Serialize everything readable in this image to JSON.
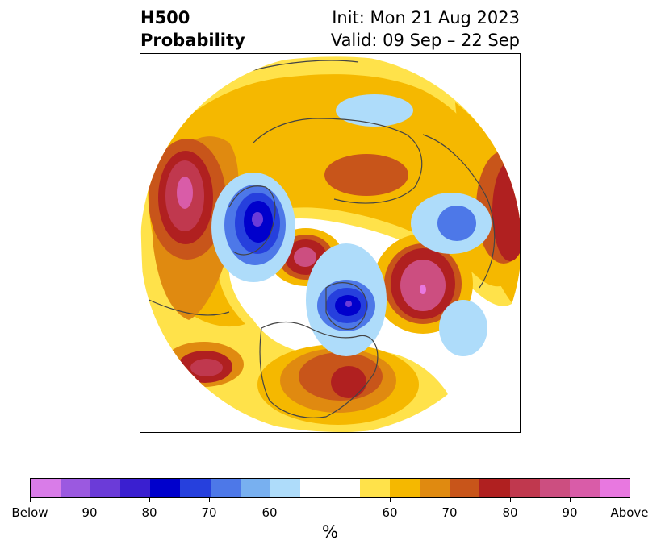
{
  "header": {
    "variable": "H500",
    "product": "Probability",
    "init": "Init: Mon 21 Aug 2023",
    "valid": "Valid: 09 Sep – 22 Sep"
  },
  "map": {
    "projection": "north polar stereographic",
    "palette": {
      "below_90_plus": "#d97ce8",
      "below_90": "#9b59e0",
      "below_85": "#6b3bd8",
      "below_80": "#3a1fd0",
      "below_75": "#0000cc",
      "below_70": "#2640dd",
      "below_65": "#4d78e8",
      "below_60": "#78b0f0",
      "below_55": "#aedcfa",
      "neutral": "#ffffff",
      "above_55": "#ffe24a",
      "above_60": "#f5b800",
      "above_65": "#e08a10",
      "above_70": "#c8551a",
      "above_75": "#b02020",
      "above_80": "#c0384e",
      "above_85": "#cc4e80",
      "above_90": "#d95ca8",
      "above_90_plus": "#e878e0",
      "border_lines": "#444444"
    }
  },
  "colorbar": {
    "tick_labels": [
      "Below",
      "90",
      "80",
      "70",
      "60",
      "60",
      "70",
      "80",
      "90",
      "Above"
    ],
    "unit": "%"
  }
}
